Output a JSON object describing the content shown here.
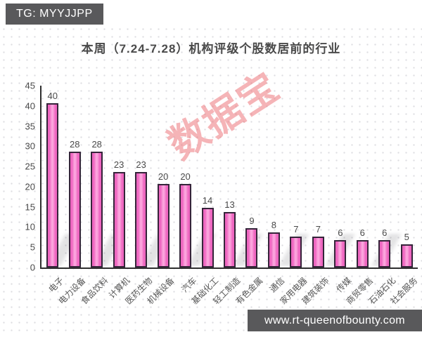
{
  "badge": {
    "label": "TG: MYYJJPP"
  },
  "title": "本周（7.24-7.28）机构评级个股数居前的行业",
  "watermark": {
    "center_text": "数据宝"
  },
  "footer": {
    "url": "www.rt-queenofbounty.com"
  },
  "colors": {
    "bar_fill": "#ee66c0",
    "bar_highlight": "#fca6de",
    "bar_border": "#35243a",
    "axis": "#2e2e2e",
    "text": "#4a4a4a",
    "badge_bg": "#59595b"
  },
  "chart_data": {
    "type": "bar",
    "title": "本周（7.24-7.28）机构评级个股数居前的行业",
    "categories": [
      "电子",
      "电力设备",
      "食品饮料",
      "计算机",
      "医药生物",
      "机械设备",
      "汽车",
      "基础化工",
      "轻工制造",
      "有色金属",
      "通信",
      "家用电器",
      "建筑装饰",
      "传媒",
      "商贸零售",
      "石油石化",
      "社会服务"
    ],
    "values": [
      40,
      28,
      28,
      23,
      23,
      20,
      20,
      14,
      13,
      9,
      8,
      7,
      7,
      6,
      6,
      6,
      5
    ],
    "xlabel": "",
    "ylabel": "",
    "ylim": [
      0,
      45
    ],
    "yticks": [
      0,
      5,
      10,
      15,
      20,
      25,
      30,
      35,
      40,
      45
    ],
    "grid": false,
    "data_labels": true,
    "legend": false
  }
}
